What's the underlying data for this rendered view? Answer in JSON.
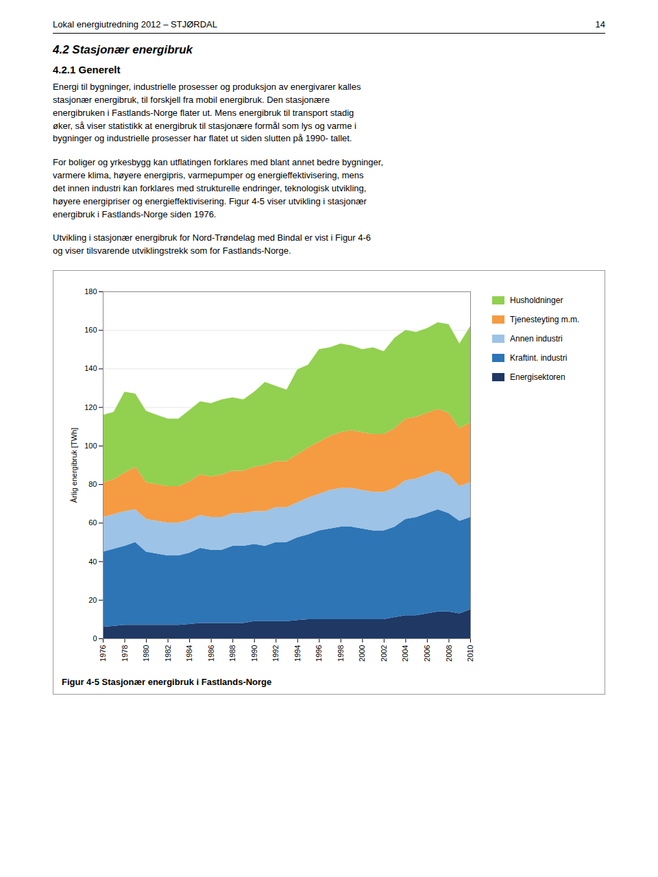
{
  "header_left": "Lokal energiutredning 2012 – STJØRDAL",
  "header_right": "14",
  "section_title": "4.2 Stasjonær energibruk",
  "subsection_title": "4.2.1 Generelt",
  "paragraphs": [
    "Energi til bygninger, industrielle prosesser og produksjon av energivarer kalles\nstasjonær energibruk, til forskjell fra mobil energibruk. Den stasjonære\nenergibruken i Fastlands-Norge flater ut. Mens energibruk til transport stadig\nøker, så viser statistikk at energibruk til stasjonære formål som lys og varme i\nbygninger og industrielle prosesser har flatet ut siden slutten på 1990- tallet.",
    "For boliger og yrkesbygg kan utflatingen forklares med blant annet bedre bygninger,\nvarmere klima, høyere energipris, varmepumper og energieffektivisering, mens\ndet innen industri kan forklares med strukturelle endringer, teknologisk utvikling,\nhøyere energipriser og energieffektivisering. Figur 4-5 viser utvikling i stasjonær\nenergibruk i Fastlands-Norge siden 1976.",
    "Utvikling i stasjonær energibruk for Nord-Trøndelag med Bindal er vist i Figur 4-6\nog viser tilsvarende utviklingstrekk som for Fastlands-Norge."
  ],
  "chart_data": {
    "type": "area",
    "stacked": true,
    "title": "Figur 4-5 Stasjonær energibruk i Fastlands-Norge",
    "ylabel": "Årlig energibruk [TWh]",
    "x": [
      1976,
      1977,
      1978,
      1979,
      1980,
      1981,
      1982,
      1983,
      1984,
      1985,
      1986,
      1987,
      1988,
      1989,
      1990,
      1991,
      1992,
      1993,
      1994,
      1995,
      1996,
      1997,
      1998,
      1999,
      2000,
      2001,
      2002,
      2003,
      2004,
      2005,
      2006,
      2007,
      2008,
      2009,
      2010
    ],
    "xlim": [
      1976,
      2010
    ],
    "xticks": [
      1976,
      1978,
      1980,
      1982,
      1984,
      1986,
      1988,
      1990,
      1992,
      1994,
      1996,
      1998,
      2000,
      2002,
      2004,
      2006,
      2008,
      2010
    ],
    "ylim": [
      0,
      180
    ],
    "yticks": [
      0,
      20,
      40,
      60,
      80,
      100,
      120,
      140,
      160,
      180
    ],
    "grid": true,
    "legend": "right",
    "series": [
      {
        "name": "Energisektoren",
        "color": "#1f3864",
        "values": [
          6,
          6.5,
          7,
          7,
          7,
          7,
          7,
          7,
          7.5,
          8,
          8,
          8,
          8,
          8,
          9,
          9,
          9,
          9,
          9.5,
          10,
          10,
          10,
          10,
          10,
          10,
          10,
          10,
          11,
          12,
          12,
          13,
          14,
          14,
          13,
          15
        ]
      },
      {
        "name": "Kraftint. industri",
        "color": "#2e75b6",
        "values": [
          39,
          40,
          41,
          43,
          38,
          37,
          36,
          36,
          37,
          39,
          38,
          38,
          40,
          40,
          40,
          39,
          41,
          41,
          43,
          44,
          46,
          47,
          48,
          48,
          47,
          46,
          46,
          47,
          50,
          51,
          52,
          53,
          51,
          48,
          48
        ]
      },
      {
        "name": "Annen industri",
        "color": "#9dc3e6",
        "values": [
          18,
          18,
          18,
          17,
          17,
          17,
          17,
          17,
          17,
          17,
          17,
          17,
          17,
          17,
          17,
          18,
          18,
          18,
          18,
          19,
          19,
          20,
          20,
          20,
          20,
          20,
          20,
          20,
          20,
          20,
          20,
          20,
          20,
          18,
          18
        ]
      },
      {
        "name": "Tjenesteyting m.m.",
        "color": "#f59b42",
        "values": [
          18,
          18,
          20,
          22,
          19,
          19,
          19,
          19,
          20,
          21,
          21,
          22,
          22,
          22,
          23,
          24,
          24,
          24,
          25,
          26,
          27,
          28,
          29,
          30,
          30,
          30,
          30,
          31,
          32,
          32,
          32,
          32,
          32,
          30,
          31
        ]
      },
      {
        "name": "Husholdninger",
        "color": "#92d050",
        "values": [
          35,
          35,
          42,
          38,
          37,
          36,
          35,
          35,
          37,
          38,
          38,
          39,
          38,
          37,
          39,
          43,
          39,
          37,
          44,
          43,
          48,
          46,
          46,
          44,
          43,
          45,
          43,
          47,
          46,
          44,
          44,
          45,
          46,
          44,
          50
        ]
      }
    ]
  }
}
